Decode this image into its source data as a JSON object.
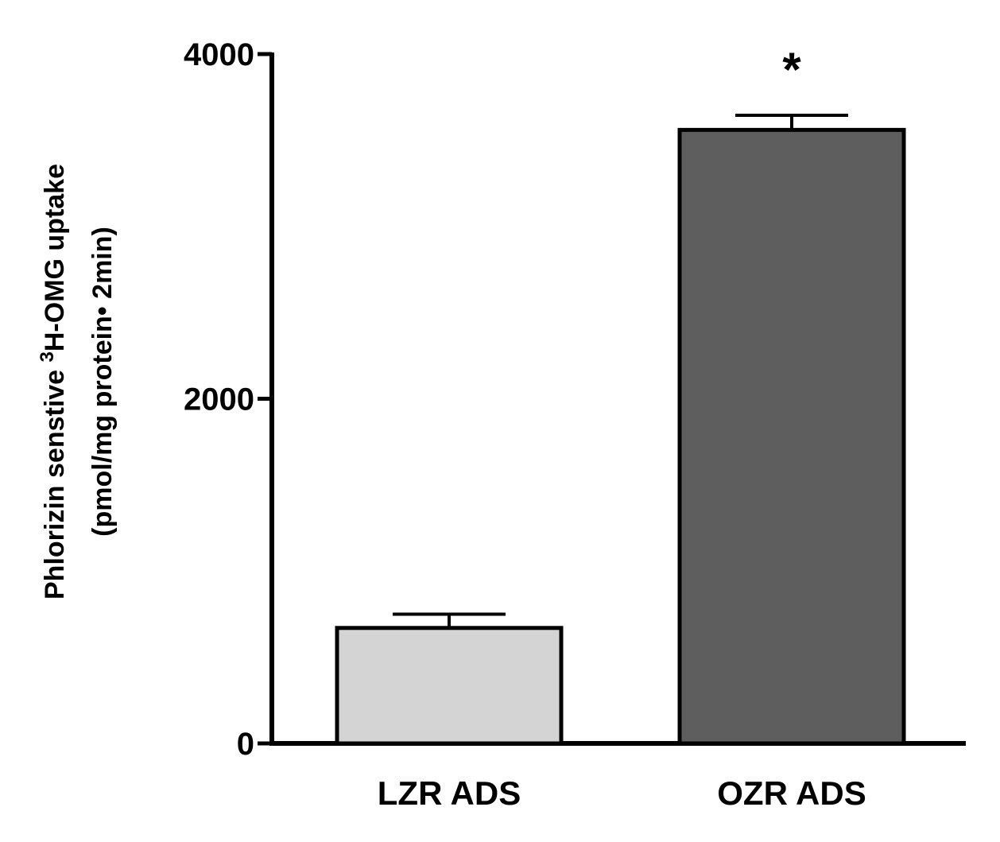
{
  "chart_data": {
    "type": "bar",
    "categories": [
      "LZR  ADS",
      "OZR ADS"
    ],
    "values": [
      670,
      3560
    ],
    "errors": [
      80,
      85
    ],
    "ylim": [
      0,
      4000
    ],
    "yticks": [
      "0",
      "2000",
      "4000"
    ],
    "ylabel_line1_pre": "Phlorizin senstive ",
    "ylabel_line1_sup": "3",
    "ylabel_line1_post": "H-OMG uptake",
    "ylabel_line2": "(pmol/mg protein• 2min)",
    "significance": [
      "",
      "*"
    ],
    "colors": [
      "#d4d4d4",
      "#5e5e5e"
    ],
    "grid": false
  }
}
